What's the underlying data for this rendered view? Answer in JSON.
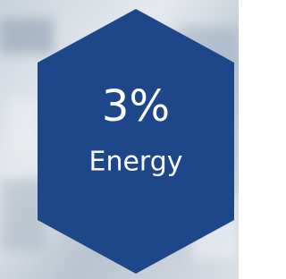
{
  "badge": {
    "value": "3%",
    "label": "Energy"
  }
}
